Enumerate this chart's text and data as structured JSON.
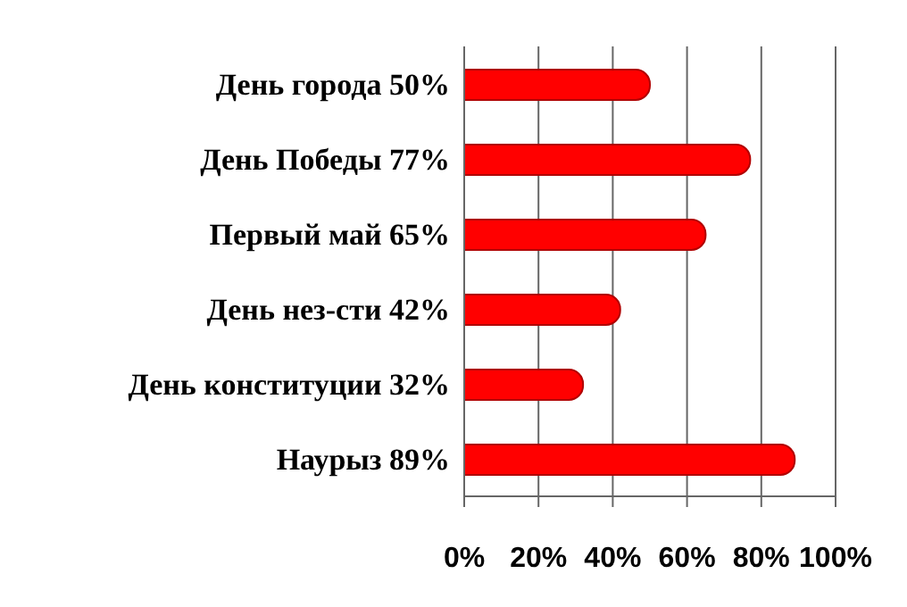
{
  "chart_data": {
    "type": "bar",
    "orientation": "horizontal",
    "categories": [
      "День города 50%",
      "День Победы 77%",
      "Первый май 65%",
      "День нез-сти 42%",
      "День конституции 32%",
      "Наурыз 89%"
    ],
    "values": [
      50,
      77,
      65,
      42,
      32,
      89
    ],
    "color": "#ff0000",
    "xlim": [
      0,
      100
    ],
    "xticks": [
      {
        "value": 0,
        "label": "0%"
      },
      {
        "value": 20,
        "label": "20%"
      },
      {
        "value": 40,
        "label": "40%"
      },
      {
        "value": 60,
        "label": "60%"
      },
      {
        "value": 80,
        "label": "80%"
      },
      {
        "value": 100,
        "label": "100%"
      }
    ],
    "grid": "x"
  }
}
